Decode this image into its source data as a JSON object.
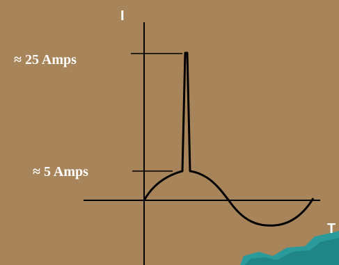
{
  "axes": {
    "y_label": "I",
    "x_label": "T"
  },
  "annotations": {
    "high": "≈ 25 Amps",
    "low": "≈ 5 Amps"
  }
}
